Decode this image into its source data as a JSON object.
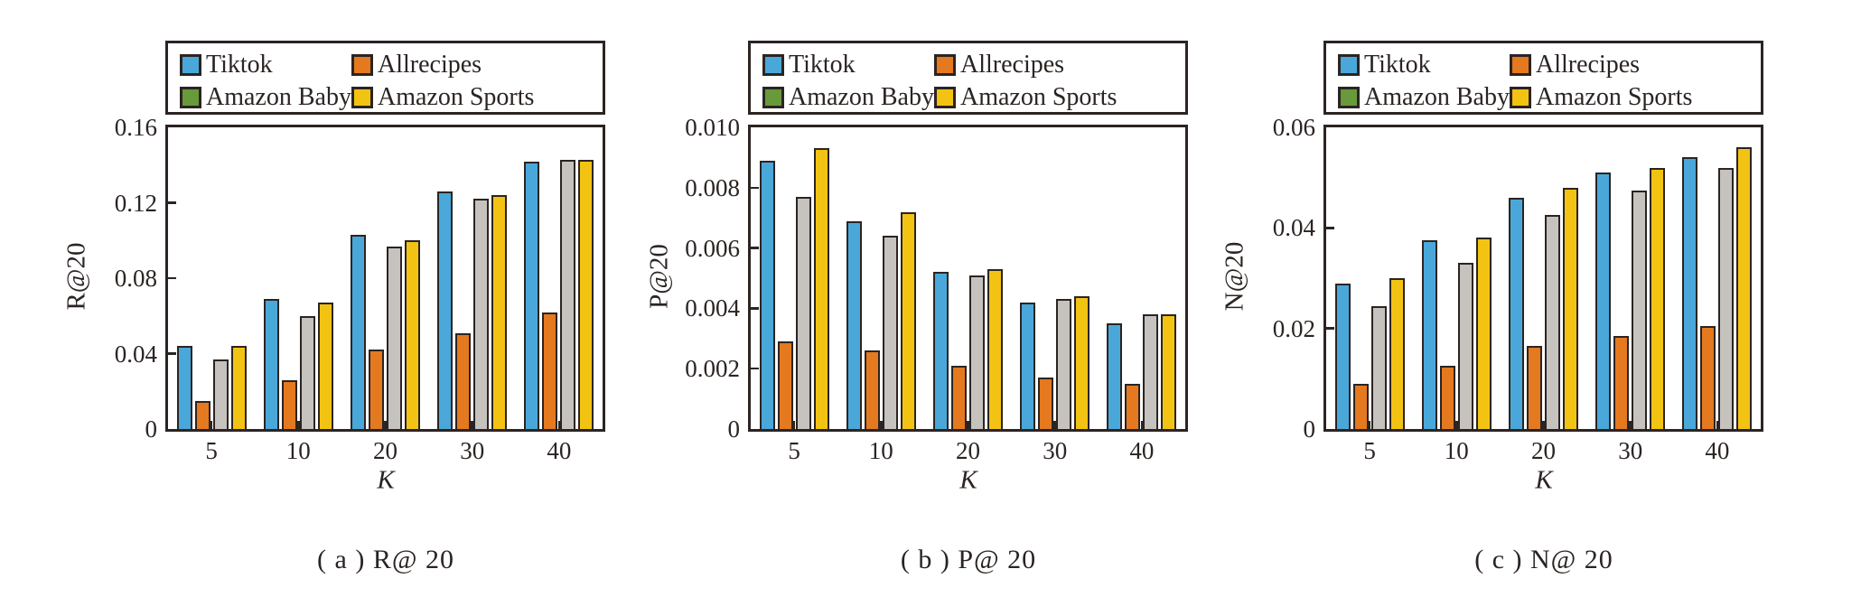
{
  "colors": {
    "ink": "#2b2422",
    "background": "#ffffff",
    "tiktok_blue": "#49a8d9",
    "allrecipes_orange": "#e4791f",
    "amazon_baby_legend_green": "#68993a",
    "amazon_baby_bar_gray": "#c6c3bf",
    "amazon_sports_yellow": "#f3c313"
  },
  "series_style": [
    {
      "name": "Tiktok",
      "legend_color": "#49a8d9",
      "bar_color": "#49a8d9"
    },
    {
      "name": "Allrecipes",
      "legend_color": "#e4791f",
      "bar_color": "#e4791f"
    },
    {
      "name": "Amazon Baby",
      "legend_color": "#68993a",
      "bar_color": "#c6c3bf"
    },
    {
      "name": "Amazon Sports",
      "legend_color": "#f3c313",
      "bar_color": "#f3c313"
    }
  ],
  "chart_data": [
    {
      "type": "bar",
      "caption": "( a ) R@ 20",
      "ylabel": "R@20",
      "xlabel": "K",
      "categories": [
        "5",
        "10",
        "20",
        "30",
        "40"
      ],
      "ylim": [
        0,
        0.16
      ],
      "grid": false,
      "legend_position": "top",
      "yticks": [
        {
          "value": 0,
          "label": "0"
        },
        {
          "value": 0.04,
          "label": "0.04"
        },
        {
          "value": 0.08,
          "label": "0.08"
        },
        {
          "value": 0.12,
          "label": "0.12"
        },
        {
          "value": 0.16,
          "label": "0.16"
        }
      ],
      "series": [
        {
          "name": "Tiktok",
          "values": [
            0.044,
            0.069,
            0.103,
            0.126,
            0.142
          ]
        },
        {
          "name": "Allrecipes",
          "values": [
            0.015,
            0.026,
            0.042,
            0.051,
            0.062
          ]
        },
        {
          "name": "Amazon Baby",
          "values": [
            0.037,
            0.06,
            0.097,
            0.122,
            0.143
          ]
        },
        {
          "name": "Amazon Sports",
          "values": [
            0.044,
            0.067,
            0.1,
            0.124,
            0.143
          ]
        }
      ]
    },
    {
      "type": "bar",
      "caption": "( b ) P@ 20",
      "ylabel": "P@20",
      "xlabel": "K",
      "categories": [
        "5",
        "10",
        "20",
        "30",
        "40"
      ],
      "ylim": [
        0,
        0.01
      ],
      "grid": false,
      "legend_position": "top",
      "yticks": [
        {
          "value": 0,
          "label": "0"
        },
        {
          "value": 0.002,
          "label": "0.002"
        },
        {
          "value": 0.004,
          "label": "0.004"
        },
        {
          "value": 0.006,
          "label": "0.006"
        },
        {
          "value": 0.008,
          "label": "0.008"
        },
        {
          "value": 0.01,
          "label": "0.010"
        }
      ],
      "series": [
        {
          "name": "Tiktok",
          "values": [
            0.0089,
            0.0069,
            0.0052,
            0.0042,
            0.0035
          ]
        },
        {
          "name": "Allrecipes",
          "values": [
            0.0029,
            0.0026,
            0.0021,
            0.0017,
            0.0015
          ]
        },
        {
          "name": "Amazon Baby",
          "values": [
            0.0077,
            0.0064,
            0.0051,
            0.0043,
            0.0038
          ]
        },
        {
          "name": "Amazon Sports",
          "values": [
            0.0093,
            0.0072,
            0.0053,
            0.0044,
            0.0038
          ]
        }
      ]
    },
    {
      "type": "bar",
      "caption": "( c ) N@ 20",
      "ylabel": "N@20",
      "xlabel": "K",
      "categories": [
        "5",
        "10",
        "20",
        "30",
        "40"
      ],
      "ylim": [
        0,
        0.06
      ],
      "grid": false,
      "legend_position": "top",
      "yticks": [
        {
          "value": 0,
          "label": "0"
        },
        {
          "value": 0.02,
          "label": "0.02"
        },
        {
          "value": 0.04,
          "label": "0.04"
        },
        {
          "value": 0.06,
          "label": "0.06"
        }
      ],
      "series": [
        {
          "name": "Tiktok",
          "values": [
            0.029,
            0.0375,
            0.046,
            0.051,
            0.054
          ]
        },
        {
          "name": "Allrecipes",
          "values": [
            0.009,
            0.0125,
            0.0165,
            0.0185,
            0.0205
          ]
        },
        {
          "name": "Amazon Baby",
          "values": [
            0.0245,
            0.033,
            0.0425,
            0.0475,
            0.052
          ]
        },
        {
          "name": "Amazon Sports",
          "values": [
            0.03,
            0.038,
            0.048,
            0.052,
            0.056
          ]
        }
      ]
    }
  ]
}
